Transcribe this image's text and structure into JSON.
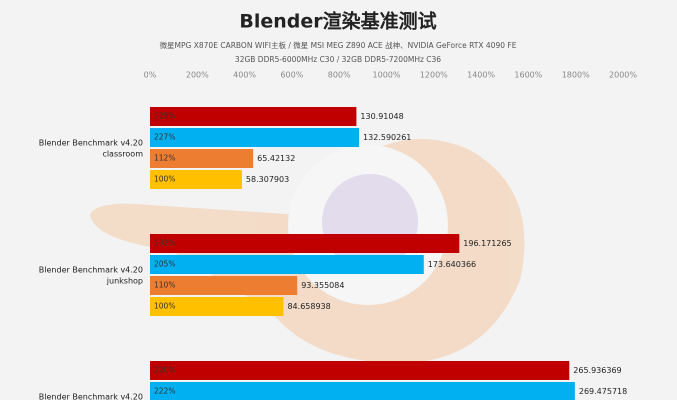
{
  "chart_data": {
    "type": "bar",
    "orientation": "horizontal",
    "title": "Blender渲染基准测试",
    "subtitle": [
      "微星MPG X870E CARBON WIFI主板 / 微星 MSI MEG Z890 ACE 战神、NVIDIA GeForce RTX 4090 FE",
      "32GB DDR5-6000MHz C30 / 32GB DDR5-7200MHz C36"
    ],
    "categories": [
      [
        "Blender Benchmark v4.20",
        "classroom"
      ],
      [
        "Blender Benchmark v4.20",
        "junkshop"
      ],
      [
        "Blender Benchmark v4.20"
      ]
    ],
    "series": [
      {
        "color": "#c00000",
        "values": [
          130.91048,
          196.171265,
          265.936369
        ],
        "ratio_labels": [
          "225%",
          "232%",
          "220%"
        ]
      },
      {
        "color": "#00b0f0",
        "values": [
          132.590261,
          173.640366,
          269.475718
        ],
        "ratio_labels": [
          "227%",
          "205%",
          "222%"
        ]
      },
      {
        "color": "#ed7d31",
        "values": [
          65.42132,
          93.355084,
          null
        ],
        "ratio_labels": [
          "112%",
          "110%",
          null
        ]
      },
      {
        "color": "#ffc000",
        "values": [
          58.307903,
          84.658938,
          null
        ],
        "ratio_labels": [
          "100%",
          "100%",
          null
        ]
      }
    ],
    "xlim": [
      0,
      300
    ],
    "xticks": [
      {
        "value": 0,
        "label": "0%"
      },
      {
        "value": 30,
        "label": "200%"
      },
      {
        "value": 60,
        "label": "400%"
      },
      {
        "value": 90,
        "label": "600%"
      },
      {
        "value": 120,
        "label": "800%"
      },
      {
        "value": 150,
        "label": "1000%"
      },
      {
        "value": 180,
        "label": "1200%"
      },
      {
        "value": 210,
        "label": "1400%"
      },
      {
        "value": 240,
        "label": "1600%"
      },
      {
        "value": 270,
        "label": "1800%"
      },
      {
        "value": 300,
        "label": "2000%"
      }
    ],
    "grid": false
  }
}
